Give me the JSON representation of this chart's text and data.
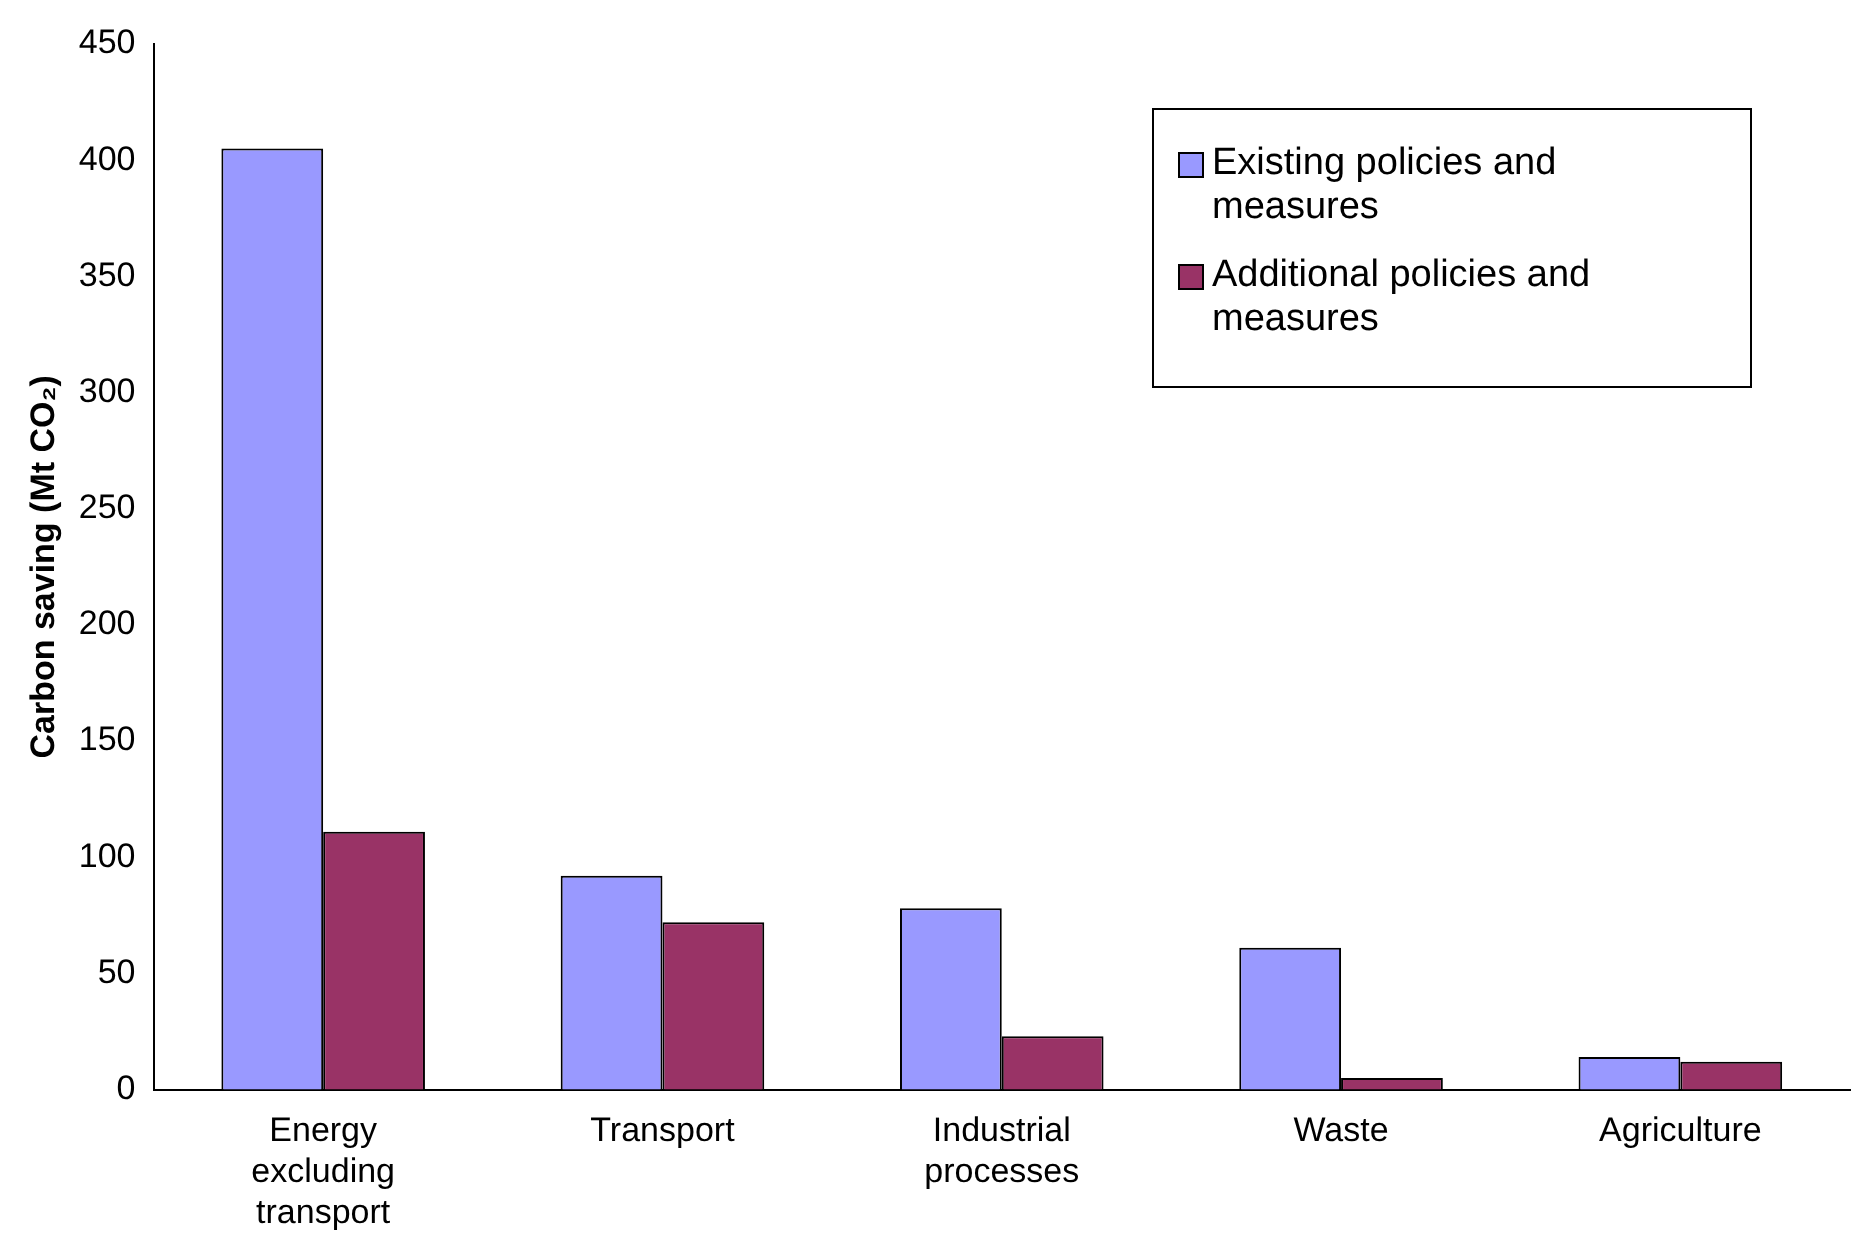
{
  "chart_data": {
    "type": "bar",
    "ylabel": "Carbon saving (Mt CO₂)",
    "categories": [
      "Energy excluding transport",
      "Transport",
      "Industrial processes",
      "Waste",
      "Agriculture"
    ],
    "series": [
      {
        "name": "Existing policies and measures",
        "color": "#9999ff",
        "values": [
          405,
          92,
          78,
          61,
          14
        ]
      },
      {
        "name": "Additional policies and measures",
        "color": "#993366",
        "values": [
          111,
          72,
          23,
          5,
          12
        ]
      }
    ],
    "ylim": [
      0,
      450
    ],
    "yticks": [
      0,
      50,
      100,
      150,
      200,
      250,
      300,
      350,
      400,
      450
    ],
    "grid": false,
    "legend": "top right"
  }
}
